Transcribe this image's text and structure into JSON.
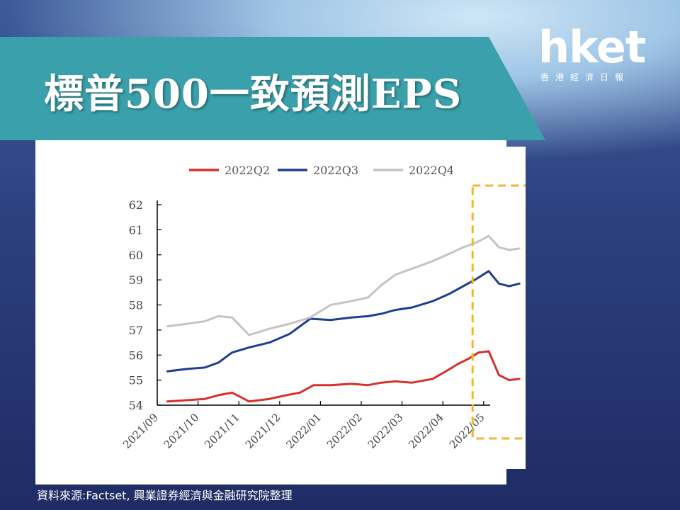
{
  "header": {
    "title": "標普500一致預測EPS",
    "logo_text": "hket",
    "logo_subtext": "香港經濟日報"
  },
  "source_note": "資料來源:Factset, 興業證券經濟與金融研究院整理",
  "colors": {
    "banner": "#3aa0ab",
    "q2": "#d9302c",
    "q3": "#1f3f8f",
    "q4": "#c4c4c4",
    "highlight": "#f2b632"
  },
  "chart_data": {
    "type": "line",
    "title": "",
    "xlabel": "",
    "ylabel": "",
    "ylim": [
      54,
      62
    ],
    "yticks": [
      "54",
      "55",
      "56",
      "57",
      "58",
      "59",
      "60",
      "61",
      "62"
    ],
    "xlim": [
      "2021/09",
      "2022/05"
    ],
    "xticks": [
      "2021/09",
      "2021/10",
      "2021/11",
      "2021/12",
      "2022/01",
      "2022/02",
      "2022/03",
      "2022/04",
      "2022/05"
    ],
    "legend_position": "top",
    "grid": false,
    "highlight": {
      "style": "dashed box",
      "x_range": [
        "2022/04",
        "2022/05"
      ]
    },
    "series": [
      {
        "name": "2022Q2",
        "color": "#d9302c",
        "points": [
          [
            "2021/09",
            54.15
          ],
          [
            "2021/09",
            54.2
          ],
          [
            "2021/10",
            54.25
          ],
          [
            "2021/10",
            54.4
          ],
          [
            "2021/10",
            54.5
          ],
          [
            "2021/11",
            54.15
          ],
          [
            "2021/11",
            54.25
          ],
          [
            "2021/12",
            54.4
          ],
          [
            "2021/12",
            54.5
          ],
          [
            "2021/12",
            54.8
          ],
          [
            "2022/01",
            54.8
          ],
          [
            "2022/01",
            54.85
          ],
          [
            "2022/02",
            54.8
          ],
          [
            "2022/02",
            54.9
          ],
          [
            "2022/02",
            54.95
          ],
          [
            "2022/03",
            54.9
          ],
          [
            "2022/03",
            55.05
          ],
          [
            "2022/04",
            55.4
          ],
          [
            "2022/04",
            55.65
          ],
          [
            "2022/04",
            55.85
          ],
          [
            "2022/04",
            56.1
          ],
          [
            "2022/05",
            56.15
          ],
          [
            "2022/05",
            55.2
          ],
          [
            "2022/05",
            55.0
          ],
          [
            "2022/05",
            55.05
          ]
        ]
      },
      {
        "name": "2022Q3",
        "color": "#1f3f8f",
        "points": [
          [
            "2021/09",
            55.35
          ],
          [
            "2021/09",
            55.45
          ],
          [
            "2021/10",
            55.5
          ],
          [
            "2021/10",
            55.7
          ],
          [
            "2021/10",
            56.1
          ],
          [
            "2021/11",
            56.3
          ],
          [
            "2021/11",
            56.5
          ],
          [
            "2021/12",
            56.85
          ],
          [
            "2021/12",
            57.45
          ],
          [
            "2022/01",
            57.4
          ],
          [
            "2022/01",
            57.5
          ],
          [
            "2022/02",
            57.55
          ],
          [
            "2022/02",
            57.65
          ],
          [
            "2022/02",
            57.8
          ],
          [
            "2022/03",
            57.9
          ],
          [
            "2022/03",
            58.15
          ],
          [
            "2022/04",
            58.45
          ],
          [
            "2022/04",
            58.75
          ],
          [
            "2022/04",
            59.05
          ],
          [
            "2022/05",
            59.35
          ],
          [
            "2022/05",
            58.85
          ],
          [
            "2022/05",
            58.75
          ],
          [
            "2022/05",
            58.85
          ]
        ]
      },
      {
        "name": "2022Q4",
        "color": "#c4c4c4",
        "points": [
          [
            "2021/09",
            57.15
          ],
          [
            "2021/09",
            57.25
          ],
          [
            "2021/10",
            57.35
          ],
          [
            "2021/10",
            57.55
          ],
          [
            "2021/10",
            57.5
          ],
          [
            "2021/11",
            56.8
          ],
          [
            "2021/11",
            57.05
          ],
          [
            "2021/12",
            57.25
          ],
          [
            "2021/12",
            57.5
          ],
          [
            "2022/01",
            58.0
          ],
          [
            "2022/01",
            58.15
          ],
          [
            "2022/02",
            58.3
          ],
          [
            "2022/02",
            58.8
          ],
          [
            "2022/02",
            59.2
          ],
          [
            "2022/03",
            59.45
          ],
          [
            "2022/03",
            59.75
          ],
          [
            "2022/04",
            60.05
          ],
          [
            "2022/04",
            60.3
          ],
          [
            "2022/04",
            60.5
          ],
          [
            "2022/05",
            60.75
          ],
          [
            "2022/05",
            60.3
          ],
          [
            "2022/05",
            60.2
          ],
          [
            "2022/05",
            60.25
          ]
        ]
      }
    ]
  }
}
